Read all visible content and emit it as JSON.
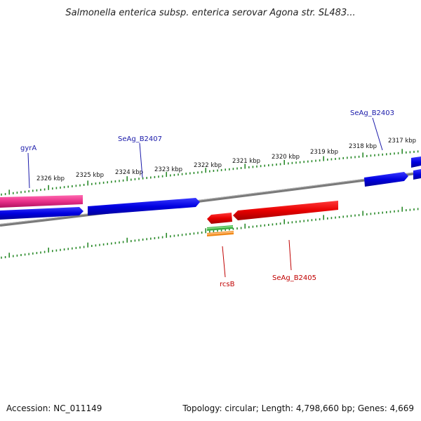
{
  "title": "Salmonella enterica subsp. enterica serovar Agona str. SL483...",
  "footer": {
    "accession": "Accession: NC_011149",
    "topology": "Topology: circular; Length: 4,798,660 bp; Genes: 4,669"
  },
  "kbp_labels": [
    "2326 kbp",
    "2325 kbp",
    "2324 kbp",
    "2323 kbp",
    "2322 kbp",
    "2321 kbp",
    "2320 kbp",
    "2319 kbp",
    "2318 kbp",
    "2317 kbp"
  ],
  "genes": {
    "gyrA": "gyrA",
    "b2407": "SeAg_B2407",
    "b2403": "SeAg_B2403",
    "rcsB": "rcsB",
    "b2405": "SeAg_B2405"
  },
  "colors": {
    "backbone": "#808080",
    "forward_cds": "#0000e6",
    "reverse_cds": "#e60000",
    "gyrA": "#e8308a",
    "ruler": "#2a8a2a",
    "label_blue": "#1a1aaa",
    "label_red": "#c00000"
  }
}
